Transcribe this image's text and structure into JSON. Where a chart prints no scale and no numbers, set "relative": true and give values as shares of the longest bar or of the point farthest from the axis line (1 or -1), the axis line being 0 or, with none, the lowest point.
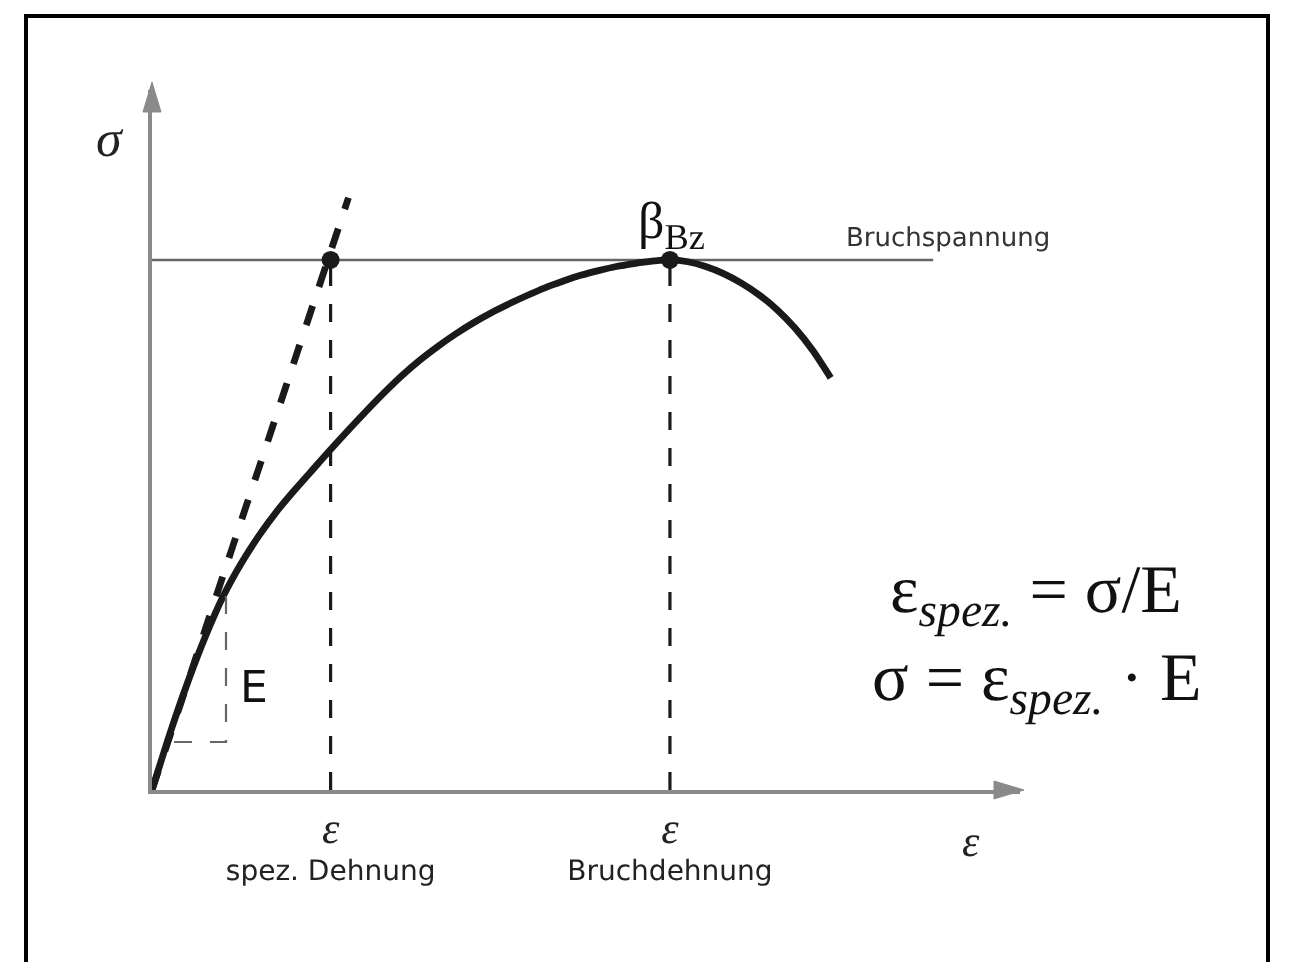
{
  "chart_data": {
    "type": "line",
    "relative": true,
    "xlabel": "ε",
    "ylabel": "σ",
    "categories": [
      null,
      null,
      null,
      null,
      null,
      null,
      null,
      null,
      null,
      null,
      "ε\nspez. Dehnung",
      null,
      null,
      null,
      null,
      null,
      null,
      null,
      null,
      null,
      null,
      null,
      null,
      null,
      null,
      null,
      null,
      null,
      null,
      "ε\nBruchdehnung",
      null,
      null,
      null,
      null,
      null,
      null,
      null,
      null,
      null,
      null,
      null,
      null,
      null,
      null,
      null,
      null,
      null,
      null,
      null
    ],
    "series": [
      {
        "color": "#1a1a1a",
        "line_style": "solid",
        "values": [
          0,
          0.095,
          0.182,
          0.26,
          0.328,
          0.383,
          0.43,
          0.471,
          0.507,
          0.541,
          0.575,
          0.608,
          0.64,
          0.671,
          0.7,
          0.726,
          0.749,
          0.77,
          0.789,
          0.806,
          0.821,
          0.835,
          0.848,
          0.859,
          0.869,
          0.877,
          0.884,
          0.889,
          0.893,
          0.895,
          0.892,
          0.884,
          0.872,
          0.856,
          0.836,
          0.811,
          0.78,
          0.742,
          0.696,
          null,
          null,
          null,
          null,
          null,
          null,
          null,
          null,
          null,
          null
        ]
      },
      {
        "color": "#1a1a1a",
        "line_style": "dashed",
        "values": [
          0,
          0.091,
          0.182,
          0.273,
          0.364,
          0.455,
          0.545,
          0.636,
          0.727,
          0.818,
          0.909,
          1.0,
          null,
          null,
          null,
          null,
          null,
          null,
          null,
          null,
          null,
          null,
          null,
          null,
          null,
          null,
          null,
          null,
          null,
          null,
          null,
          null,
          null,
          null,
          null,
          null,
          null,
          null,
          null,
          null,
          null,
          null,
          null,
          null,
          null,
          null,
          null,
          null,
          null
        ]
      },
      {
        "type": "lollipop",
        "color": "#1a1a1a",
        "marker": "circle",
        "line_style": "dashed",
        "values": [
          null,
          null,
          null,
          null,
          null,
          null,
          null,
          null,
          null,
          null,
          0.895,
          null,
          null,
          null,
          null,
          null,
          null,
          null,
          null,
          null,
          null,
          null,
          null,
          null,
          null,
          null,
          null,
          null,
          null,
          0.895,
          null,
          null,
          null,
          null,
          null,
          null,
          null,
          null,
          null,
          null,
          null,
          null,
          null,
          null,
          null,
          null,
          null,
          null,
          null
        ]
      }
    ],
    "ref_lines": [
      {
        "axis": "y",
        "value": 0.895,
        "label": "Bruchspannung",
        "color": "#666666",
        "line_style": "solid"
      }
    ],
    "annotations": [
      "β$_{Bz}$",
      "E",
      "ε$_{spez.}$ = σ/E",
      "σ = ε$_{spez.}$ · E"
    ]
  }
}
